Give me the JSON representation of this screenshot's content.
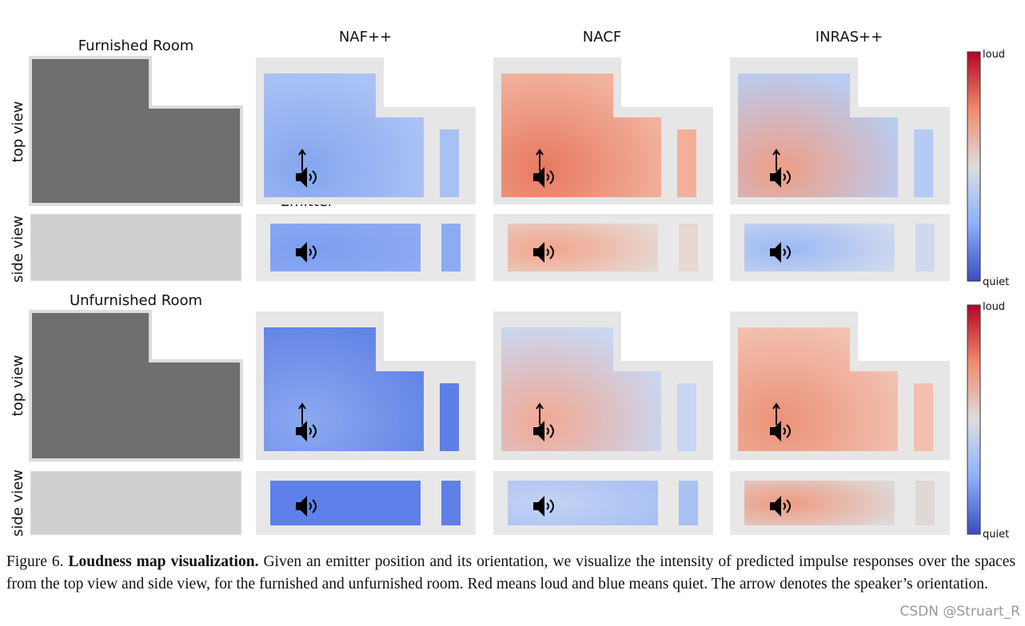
{
  "column_headers": [
    "NAF++",
    "NACF",
    "INRAS++"
  ],
  "sections": [
    {
      "title": "Furnished Room",
      "rows": [
        "top view",
        "side view"
      ]
    },
    {
      "title": "Unfurnished Room",
      "rows": [
        "top view",
        "side view"
      ]
    }
  ],
  "emitter_label": "Emitter",
  "colorbar": {
    "max_label": "loud",
    "min_label": "quiet"
  },
  "caption": {
    "label": "Figure 6.",
    "bold": "Loudness map visualization.",
    "text": "Given an emitter position and its orientation, we visualize the intensity of predicted impulse responses over the spaces from the top view and side view, for the furnished and unfurnished room. Red means loud and blue means quiet. The arrow denotes the speaker’s orientation."
  },
  "watermark": "CSDN @Struart_R"
}
